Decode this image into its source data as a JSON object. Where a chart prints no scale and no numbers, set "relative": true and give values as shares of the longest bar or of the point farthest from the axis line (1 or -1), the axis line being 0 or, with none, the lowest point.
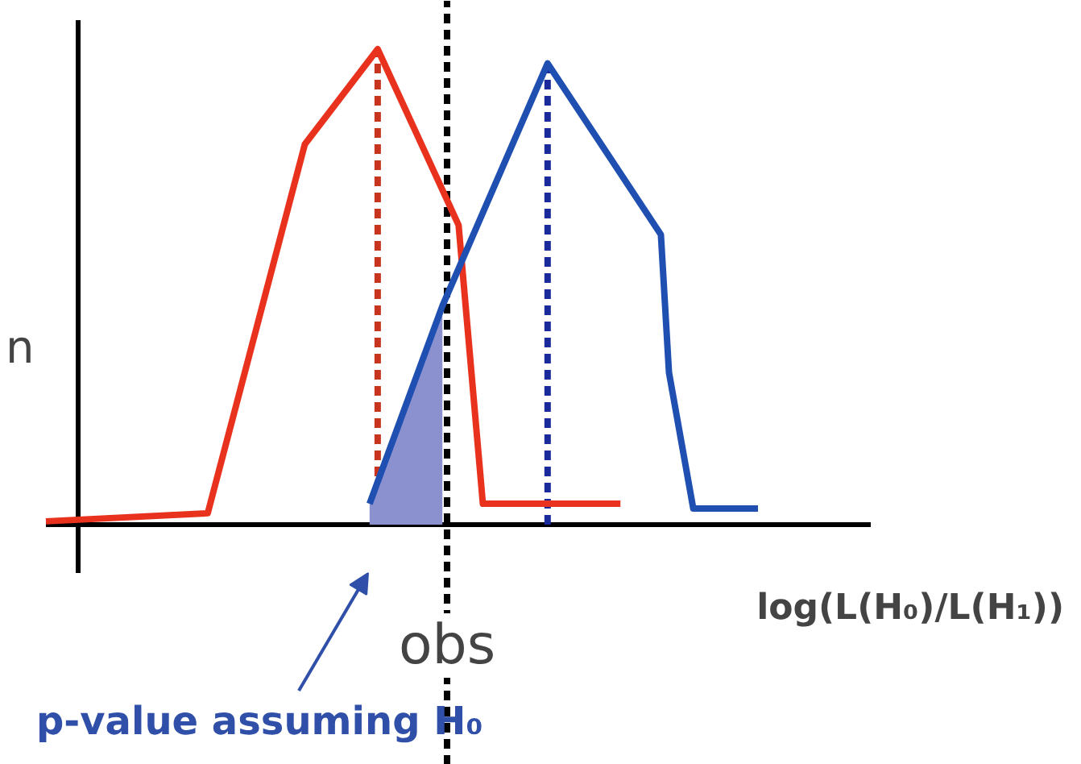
{
  "chart_data": {
    "type": "line",
    "relative": true,
    "xlabel": "log(L(H₀)/L(H₁))",
    "ylabel": "n",
    "grid": false,
    "marker": "none",
    "categories": [
      null,
      null,
      null,
      null,
      null,
      null,
      null,
      null,
      null,
      null,
      null,
      null,
      null,
      null,
      null,
      null,
      null,
      null,
      null,
      null,
      null,
      null,
      null,
      null,
      null,
      null,
      null,
      null,
      null,
      null,
      null,
      null,
      null,
      null,
      null,
      null,
      null,
      null,
      null,
      null,
      null,
      null,
      null,
      null,
      null,
      null,
      null,
      null,
      null,
      null,
      null,
      null,
      null,
      null,
      null,
      null,
      null,
      null,
      null,
      null,
      null,
      null,
      null,
      null,
      null,
      null,
      null,
      null,
      null,
      null,
      null,
      null,
      null,
      null,
      null,
      null,
      null,
      null,
      null,
      null,
      null,
      null,
      null,
      null,
      null,
      null,
      null,
      null,
      null
    ],
    "series": [
      {
        "type": "area",
        "color": "#8b90cf",
        "values": [
          null,
          null,
          null,
          null,
          null,
          null,
          null,
          null,
          null,
          null,
          null,
          null,
          null,
          null,
          null,
          null,
          null,
          null,
          null,
          null,
          null,
          null,
          null,
          null,
          null,
          null,
          null,
          null,
          null,
          null,
          null,
          null,
          null,
          null,
          null,
          null,
          null,
          null,
          null,
          null,
          0.044,
          null,
          null,
          null,
          null,
          null,
          null,
          null,
          null,
          0.46,
          null,
          null,
          null,
          null,
          null,
          null,
          null,
          null,
          null,
          null,
          null,
          null,
          null,
          null,
          null,
          null,
          null,
          null,
          null,
          null,
          null,
          null,
          null,
          null,
          null,
          null,
          null,
          null,
          null,
          null,
          null,
          null,
          null,
          null,
          null,
          null,
          null,
          null,
          null
        ]
      },
      {
        "color": "#e8321e",
        "values": [
          0.007,
          null,
          null,
          null,
          null,
          null,
          null,
          null,
          null,
          null,
          null,
          null,
          null,
          null,
          null,
          null,
          null,
          null,
          null,
          null,
          0.024,
          null,
          null,
          null,
          null,
          null,
          null,
          null,
          null,
          null,
          null,
          null,
          0.8,
          null,
          null,
          null,
          null,
          null,
          null,
          null,
          null,
          1.0,
          null,
          null,
          null,
          null,
          null,
          null,
          null,
          null,
          null,
          0.63,
          null,
          null,
          0.044,
          null,
          null,
          null,
          null,
          null,
          null,
          null,
          null,
          null,
          null,
          null,
          null,
          null,
          null,
          null,
          null,
          0.044,
          null,
          null,
          null,
          null,
          null,
          null,
          null,
          null,
          null,
          null,
          null,
          null,
          null,
          null,
          null,
          null,
          null
        ]
      },
      {
        "color": "#1f4fb0",
        "values": [
          null,
          null,
          null,
          null,
          null,
          null,
          null,
          null,
          null,
          null,
          null,
          null,
          null,
          null,
          null,
          null,
          null,
          null,
          null,
          null,
          null,
          null,
          null,
          null,
          null,
          null,
          null,
          null,
          null,
          null,
          null,
          null,
          null,
          null,
          null,
          null,
          null,
          null,
          null,
          null,
          0.044,
          null,
          null,
          null,
          null,
          null,
          null,
          null,
          null,
          0.46,
          null,
          null,
          null,
          null,
          null,
          null,
          null,
          null,
          null,
          null,
          null,
          null,
          0.97,
          null,
          null,
          null,
          null,
          null,
          null,
          null,
          null,
          null,
          null,
          null,
          null,
          null,
          0.61,
          0.32,
          null,
          null,
          0.034,
          null,
          null,
          null,
          null,
          null,
          null,
          null,
          0.034
        ]
      }
    ],
    "annotations": [
      "obs",
      "p-value assuming H₀"
    ]
  }
}
